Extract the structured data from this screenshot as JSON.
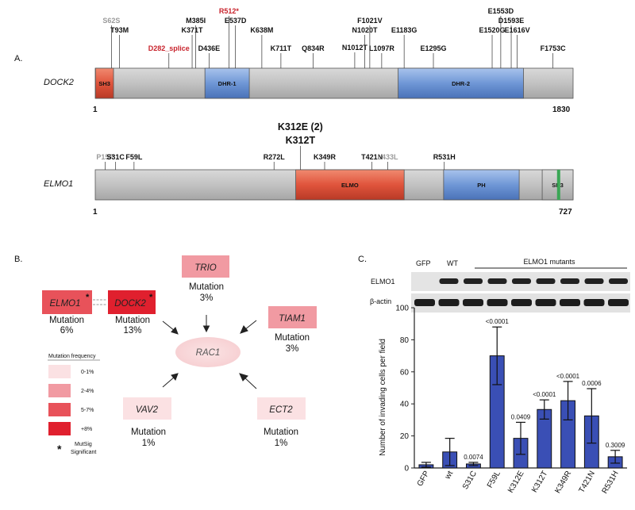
{
  "panel_a": {
    "label": "A.",
    "dock2": {
      "name": "DOCK2",
      "start": "1",
      "end": "1830",
      "domains": [
        {
          "label": "SH3",
          "start": 1,
          "end": 70,
          "color": "#e0543c"
        },
        {
          "label": "DHR-1",
          "start": 420,
          "end": 590,
          "color": "#5b86c9"
        },
        {
          "label": "DHR-2",
          "start": 1160,
          "end": 1640,
          "color": "#5b86c9"
        }
      ],
      "mutations": [
        {
          "label": "S62S",
          "pos": 62,
          "color": "gray",
          "tier": 1
        },
        {
          "label": "T93M",
          "pos": 93,
          "color": "black",
          "tier": 2
        },
        {
          "label": "D282_splice",
          "pos": 282,
          "color": "red",
          "tier": 3
        },
        {
          "label": "K371T",
          "pos": 371,
          "color": "black",
          "tier": 2
        },
        {
          "label": "M385I",
          "pos": 385,
          "color": "black",
          "tier": 1
        },
        {
          "label": "D436E",
          "pos": 436,
          "color": "black",
          "tier": 3
        },
        {
          "label": "R512*",
          "pos": 512,
          "color": "red",
          "tier": 0
        },
        {
          "label": "E537D",
          "pos": 537,
          "color": "black",
          "tier": 1
        },
        {
          "label": "K638M",
          "pos": 638,
          "color": "black",
          "tier": 2
        },
        {
          "label": "K711T",
          "pos": 711,
          "color": "black",
          "tier": 3
        },
        {
          "label": "Q834R",
          "pos": 834,
          "color": "black",
          "tier": 3
        },
        {
          "label": "N1012T",
          "pos": 1012,
          "color": "black",
          "tier": 4
        },
        {
          "label": "N1020T",
          "pos": 1020,
          "color": "black",
          "tier": 2
        },
        {
          "label": "F1021V",
          "pos": 1021,
          "color": "black",
          "tier": 1
        },
        {
          "label": "L1097R",
          "pos": 1097,
          "color": "black",
          "tier": 3
        },
        {
          "label": "E1183G",
          "pos": 1183,
          "color": "black",
          "tier": 2
        },
        {
          "label": "E1295G",
          "pos": 1295,
          "color": "black",
          "tier": 3
        },
        {
          "label": "E1520G",
          "pos": 1520,
          "color": "black",
          "tier": 2
        },
        {
          "label": "E1553D",
          "pos": 1553,
          "color": "black",
          "tier": 0
        },
        {
          "label": "D1593E",
          "pos": 1593,
          "color": "black",
          "tier": 1
        },
        {
          "label": "E1616V",
          "pos": 1616,
          "color": "black",
          "tier": 2
        },
        {
          "label": "F1753C",
          "pos": 1753,
          "color": "black",
          "tier": 3
        }
      ]
    },
    "elmo1": {
      "name": "ELMO1",
      "start": "1",
      "end": "727",
      "domains": [
        {
          "label": "ELMO",
          "start": 305,
          "end": 470,
          "color": "#e0543c"
        },
        {
          "label": "PH",
          "start": 530,
          "end": 645,
          "color": "#5b86c9"
        },
        {
          "label": "SH3",
          "start": 680,
          "end": 727,
          "color": "#c0c0c0"
        }
      ],
      "mutations": [
        {
          "label": "P15P",
          "pos": 15,
          "color": "gray",
          "tier": 3
        },
        {
          "label": "S31C",
          "pos": 31,
          "color": "black",
          "tier": 3
        },
        {
          "label": "F59L",
          "pos": 59,
          "color": "black",
          "tier": 3
        },
        {
          "label": "R272L",
          "pos": 272,
          "color": "black",
          "tier": 3
        },
        {
          "label": "K312T",
          "pos": 312,
          "color": "black",
          "tier": 1,
          "big": true
        },
        {
          "label": "K312E (2)",
          "pos": 312,
          "color": "black",
          "tier": 0,
          "big": true
        },
        {
          "label": "K349R",
          "pos": 349,
          "color": "black",
          "tier": 3
        },
        {
          "label": "T421N",
          "pos": 421,
          "color": "black",
          "tier": 3
        },
        {
          "label": "L433L",
          "pos": 433,
          "color": "gray",
          "tier": 3
        },
        {
          "label": "R531H",
          "pos": 531,
          "color": "black",
          "tier": 3
        }
      ]
    }
  },
  "panel_b": {
    "label": "B.",
    "center": "RAC1",
    "mutation_word": "Mutation",
    "nodes": [
      {
        "name": "ELMO1",
        "pct": "6%",
        "star": true,
        "color": "#e8525a"
      },
      {
        "name": "DOCK2",
        "pct": "13%",
        "star": true,
        "color": "#e0202e"
      },
      {
        "name": "TRIO",
        "pct": "3%",
        "star": false,
        "color": "#f19aa2"
      },
      {
        "name": "TIAM1",
        "pct": "3%",
        "star": false,
        "color": "#f19aa2"
      },
      {
        "name": "VAV2",
        "pct": "1%",
        "star": false,
        "color": "#fbe1e3"
      },
      {
        "name": "ECT2",
        "pct": "1%",
        "star": false,
        "color": "#fbe1e3"
      }
    ],
    "legend": {
      "title": "Mutation frequency",
      "items": [
        {
          "label": "0-1%",
          "color": "#fbe1e3"
        },
        {
          "label": "2-4%",
          "color": "#f19aa2"
        },
        {
          "label": "5-7%",
          "color": "#e8525a"
        },
        {
          "label": "+8%",
          "color": "#e0202e"
        }
      ],
      "star_symbol": "*",
      "star_note_line1": "MutSig",
      "star_note_line2": "Significant"
    }
  },
  "panel_c": {
    "label": "C.",
    "blot": {
      "lane_gfp": "GFP",
      "lane_wt": "WT",
      "mutants_label": "ELMO1 mutants",
      "rows": [
        "ELMO1",
        "β-actin"
      ]
    },
    "chart_data": {
      "type": "bar",
      "categories": [
        "GFP",
        "wt",
        "S31C",
        "F59L",
        "K312E",
        "K312T",
        "K349R",
        "T421N",
        "R531H"
      ],
      "values": [
        2,
        10,
        2.5,
        70,
        18.5,
        36.5,
        42,
        32.5,
        7
      ],
      "errors": [
        1.5,
        8.5,
        1,
        18,
        10,
        6,
        12,
        17,
        4
      ],
      "pvalues": [
        "",
        "",
        "0.0074",
        "<0.0001",
        "0.0409",
        "<0.0001",
        "<0.0001",
        "0.0006",
        "0.3009"
      ],
      "ylabel": "Number of invading cells per field",
      "ylim": [
        0,
        100
      ],
      "yticks": [
        0,
        20,
        40,
        60,
        80,
        100
      ],
      "bar_color": "#3a4fb5"
    }
  }
}
